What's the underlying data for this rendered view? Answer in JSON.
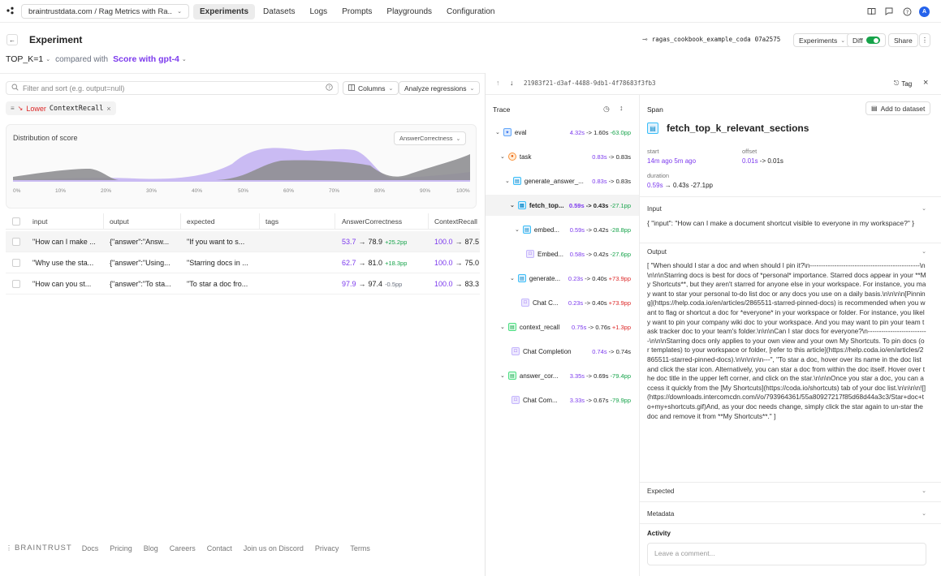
{
  "nav": {
    "breadcrumb": "braintrustdata.com / Rag Metrics with Ra...",
    "tabs": [
      "Experiments",
      "Datasets",
      "Logs",
      "Prompts",
      "Playgrounds",
      "Configuration"
    ],
    "avatar_letter": "A"
  },
  "header": {
    "title": "Experiment",
    "base_experiment": "ragas_cookbook_example_coda",
    "commit": "07a2575",
    "experiments_label": "Experiments",
    "diff_label": "Diff",
    "share_label": "Share",
    "selector": "TOP_K=1",
    "compared_with": "compared with",
    "comparison": "Score with gpt-4"
  },
  "toolbar": {
    "filter_placeholder": "Filter and sort (e.g. output=null)",
    "columns_label": "Columns",
    "analyze_label": "Analyze regressions",
    "filter_tag_prefix": "Lower",
    "filter_tag_metric": "ContextRecall"
  },
  "distribution": {
    "title": "Distribution of score",
    "metric_select": "AnswerCorrectness",
    "ticks": [
      "0%",
      "10%",
      "20%",
      "30%",
      "40%",
      "50%",
      "60%",
      "70%",
      "80%",
      "90%",
      "100%"
    ],
    "colors": {
      "base": "#8f8f92",
      "compare": "#b9a6f0"
    }
  },
  "table": {
    "columns": [
      "input",
      "output",
      "expected",
      "tags",
      "AnswerCorrectness",
      "ContextRecall"
    ],
    "rows": [
      {
        "input": "\"How can I make ...",
        "output": "{\"answer\":\"Answ...",
        "expected": "\"If you want to s...",
        "ac_from": "53.7",
        "ac_to": "78.9",
        "ac_diff": "+25.2pp",
        "cr_from": "100.0",
        "cr_to": "87.5"
      },
      {
        "input": "\"Why use the sta...",
        "output": "{\"answer\":\"Using...",
        "expected": "\"Starring docs in ...",
        "ac_from": "62.7",
        "ac_to": "81.0",
        "ac_diff": "+18.3pp",
        "cr_from": "100.0",
        "cr_to": "75.0"
      },
      {
        "input": "\"How can you st...",
        "output": "{\"answer\":\"To sta...",
        "expected": "\"To star a doc fro...",
        "ac_from": "97.9",
        "ac_to": "97.4",
        "ac_diff": "-0.5pp",
        "cr_from": "100.0",
        "cr_to": "83.3"
      }
    ]
  },
  "footer": {
    "brand": "BRAINTRUST",
    "links": [
      "Docs",
      "Pricing",
      "Blog",
      "Careers",
      "Contact",
      "Join us on Discord",
      "Privacy",
      "Terms"
    ]
  },
  "trace": {
    "id": "21983f21-d3af-4488-9db1-4f78683f3fb3",
    "tag_label": "Tag",
    "title": "Trace",
    "nodes": [
      {
        "label": "eval",
        "t1": "4.32s",
        "t2": "1.60s",
        "diff": "-63.0pp"
      },
      {
        "label": "task",
        "t1": "0.83s",
        "t2": "0.83s",
        "diff": ""
      },
      {
        "label": "generate_answer_...",
        "t1": "0.83s",
        "t2": "0.83s",
        "diff": ""
      },
      {
        "label": "fetch_top...",
        "t1": "0.59s",
        "t2": "0.43s",
        "diff": "-27.1pp"
      },
      {
        "label": "embed...",
        "t1": "0.59s",
        "t2": "0.42s",
        "diff": "-28.8pp"
      },
      {
        "label": "Embed...",
        "t1": "0.58s",
        "t2": "0.42s",
        "diff": "-27.6pp"
      },
      {
        "label": "generate...",
        "t1": "0.23s",
        "t2": "0.40s",
        "diff": "+73.9pp"
      },
      {
        "label": "Chat C...",
        "t1": "0.23s",
        "t2": "0.40s",
        "diff": "+73.9pp"
      },
      {
        "label": "context_recall",
        "t1": "0.75s",
        "t2": "0.76s",
        "diff": "+1.3pp"
      },
      {
        "label": "Chat Completion",
        "t1": "0.74s",
        "t2": "0.74s",
        "diff": ""
      },
      {
        "label": "answer_cor...",
        "t1": "3.35s",
        "t2": "0.69s",
        "diff": "-79.4pp"
      },
      {
        "label": "Chat Com...",
        "t1": "3.33s",
        "t2": "0.67s",
        "diff": "-79.9pp"
      }
    ]
  },
  "span": {
    "section_label": "Span",
    "add_to_dataset": "Add to dataset",
    "name": "fetch_top_k_relevant_sections",
    "start_label": "start",
    "start_value": "14m ago 5m ago",
    "offset_label": "offset",
    "offset_from": "0.01s",
    "offset_to": "0.01s",
    "duration_label": "duration",
    "duration_from": "0.59s",
    "duration_to": "0.43s",
    "duration_diff": "-27.1pp",
    "input_label": "Input",
    "input_text": "{ \"input\": \"How can I make a document shortcut visible to everyone in my workspace?\" }",
    "output_label": "Output",
    "output_text": "[ \"When should I star a doc and when should I pin it?\\n-------------------------------------------------\\n\\n\\n\\nStarring docs is best for docs of *personal* importance. Starred docs appear in your **My Shortcuts**, but they aren't starred for anyone else in your workspace. For instance, you may want to star your personal to-do list doc or any docs you use on a daily basis.\\n\\n\\n\\n[Pinning](https://help.coda.io/en/articles/2865511-starred-pinned-docs) is recommended when you want to flag or shortcut a doc for *everyone* in your workspace or folder. For instance, you likely want to pin your company wiki doc to your workspace. And you may want to pin your team task tracker doc to your team's folder.\\n\\n\\nCan I star docs for everyone?\\n---------------------------\\n\\n\\nStarring docs only applies to your own view and your own My Shortcuts. To pin docs (or templates) to your workspace or folder, [refer to this article](https://help.coda.io/en/articles/2865511-starred-pinned-docs).\\n\\n\\n\\n\\n---\", \"To star a doc, hover over its name in the doc list and click the star icon. Alternatively, you can star a doc from within the doc itself. Hover over the doc title in the upper left corner, and click on the star.\\n\\n\\nOnce you star a doc, you can access it quickly from the [My Shortcuts](https://coda.io/shortcuts) tab of your doc list.\\n\\n\\n\\n![](https://downloads.intercomcdn.com/i/o/793964361/55a80927217f85d68d44a3c3/Star+doc+to+my+shortcuts.gif)And, as your doc needs change, simply click the star again to un-star the doc and remove it from **My Shortcuts**.\" ]",
    "expected_label": "Expected",
    "metadata_label": "Metadata",
    "activity_label": "Activity",
    "comment_placeholder": "Leave a comment..."
  }
}
